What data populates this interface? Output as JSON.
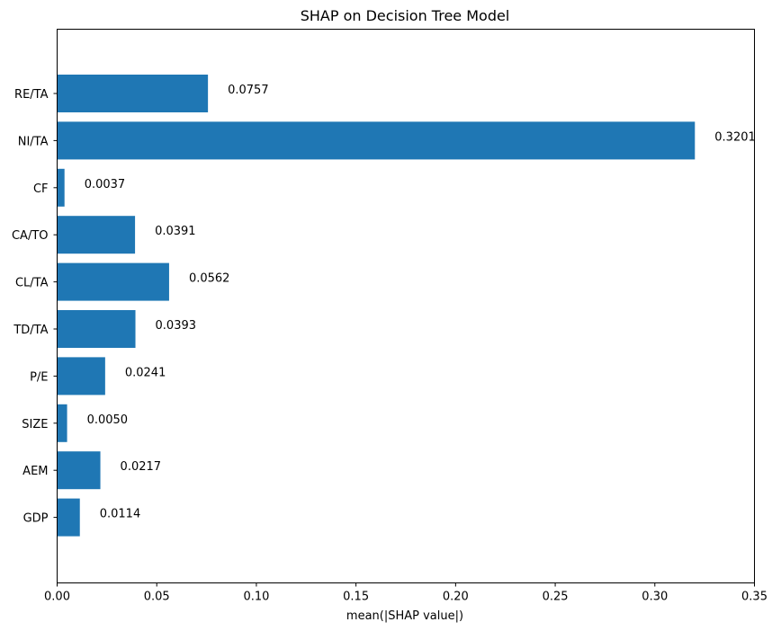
{
  "chart_data": {
    "type": "bar",
    "orientation": "horizontal",
    "title": "SHAP on Decision Tree Model",
    "xlabel": "mean(|SHAP value|)",
    "ylabel": "",
    "categories": [
      "RE/TA",
      "NI/TA",
      "CF",
      "CA/TO",
      "CL/TA",
      "TD/TA",
      "P/E",
      "SIZE",
      "AEM",
      "GDP"
    ],
    "values": [
      0.0757,
      0.3201,
      0.0037,
      0.0391,
      0.0562,
      0.0393,
      0.0241,
      0.005,
      0.0217,
      0.0114
    ],
    "value_labels": [
      "0.0757",
      "0.3201",
      "0.0037",
      "0.0391",
      "0.0562",
      "0.0393",
      "0.0241",
      "0.0050",
      "0.0217",
      "0.0114"
    ],
    "xlim": [
      0,
      0.35
    ],
    "xticks": [
      0.0,
      0.05,
      0.1,
      0.15,
      0.2,
      0.25,
      0.3,
      0.35
    ],
    "xtick_labels": [
      "0.00",
      "0.05",
      "0.10",
      "0.15",
      "0.20",
      "0.25",
      "0.30",
      "0.35"
    ],
    "grid": false,
    "legend": "none",
    "bar_color": "#1f77b4"
  }
}
